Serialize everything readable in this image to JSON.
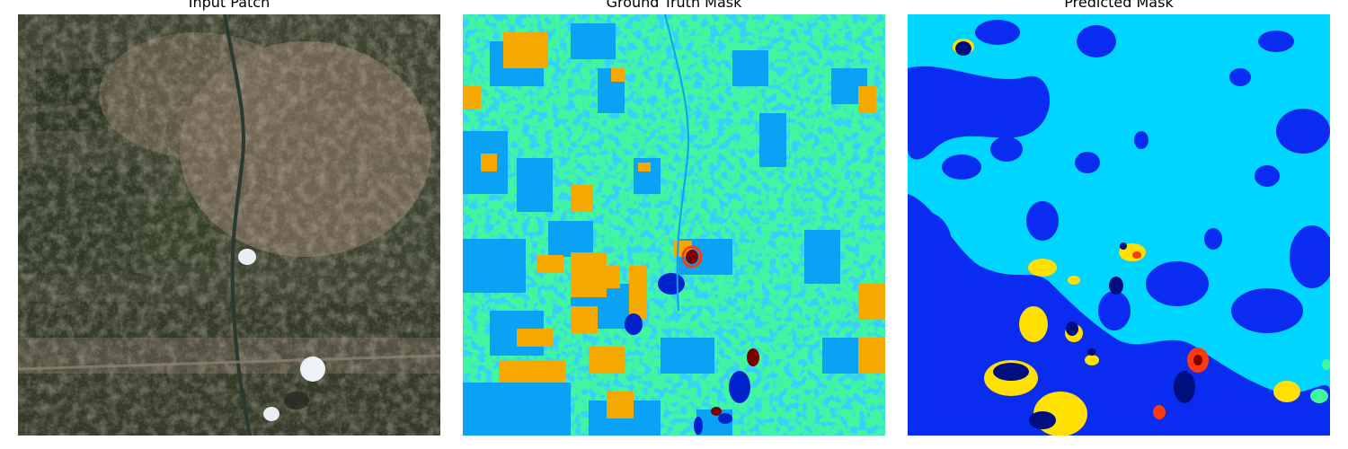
{
  "figure": {
    "panels": [
      {
        "title": "Input Patch"
      },
      {
        "title": "Ground Truth Mask"
      },
      {
        "title": "Predicted Mask"
      }
    ]
  },
  "colors": {
    "background": "#ffffff",
    "satellite_dark": "#3a3f2a",
    "satellite_urban": "#8a7a66",
    "gt_base": "#40f7a0",
    "gt_blue": "#0aa2f5",
    "gt_orange": "#f5a800",
    "gt_navy": "#0022cc",
    "gt_darkred": "#7a0000",
    "pred_base": "#00d5ff",
    "pred_blue": "#0a2cf0",
    "pred_yellow": "#ffe000",
    "pred_navy": "#000f80",
    "pred_red": "#ff3a0a"
  }
}
